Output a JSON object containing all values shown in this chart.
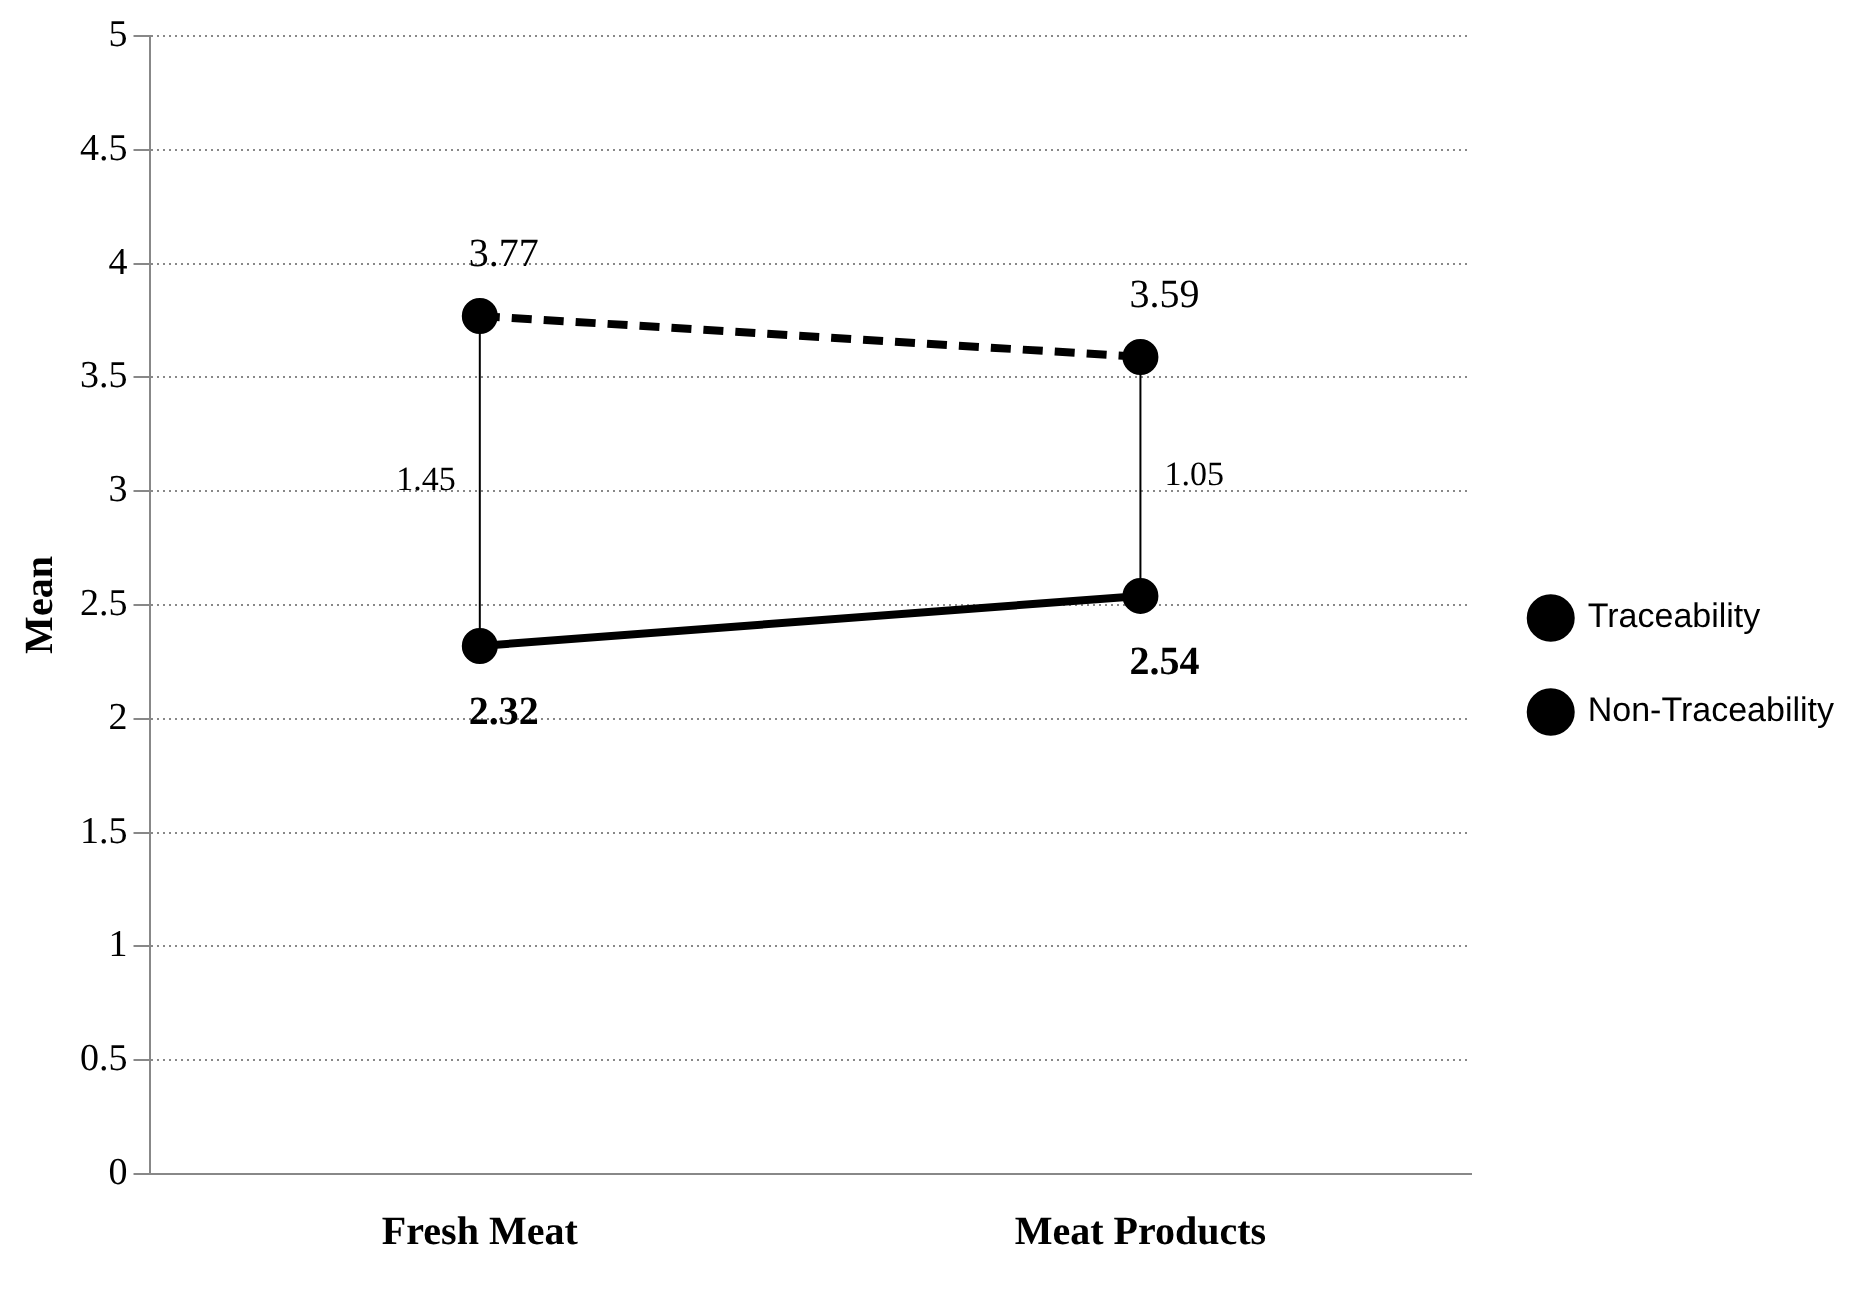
{
  "chart_data": {
    "type": "line",
    "ylabel": "Mean",
    "categories": [
      "Fresh Meat",
      "Meat Products"
    ],
    "series": [
      {
        "name": "Traceability",
        "color": "#000000",
        "values": [
          3.77,
          3.59
        ],
        "line_style": "dashed"
      },
      {
        "name": "Non-Traceability",
        "color": "#000000",
        "values": [
          2.32,
          2.54
        ],
        "line_style": "solid"
      }
    ],
    "ylim": [
      0,
      5
    ],
    "yticks": [
      0,
      0.5,
      1,
      1.5,
      2,
      2.5,
      3,
      3.5,
      4,
      4.5,
      5
    ],
    "grid": "y",
    "legend": "right",
    "marker": "circle",
    "data_labels": true,
    "annotations": [
      "1.45",
      "1.05"
    ]
  }
}
